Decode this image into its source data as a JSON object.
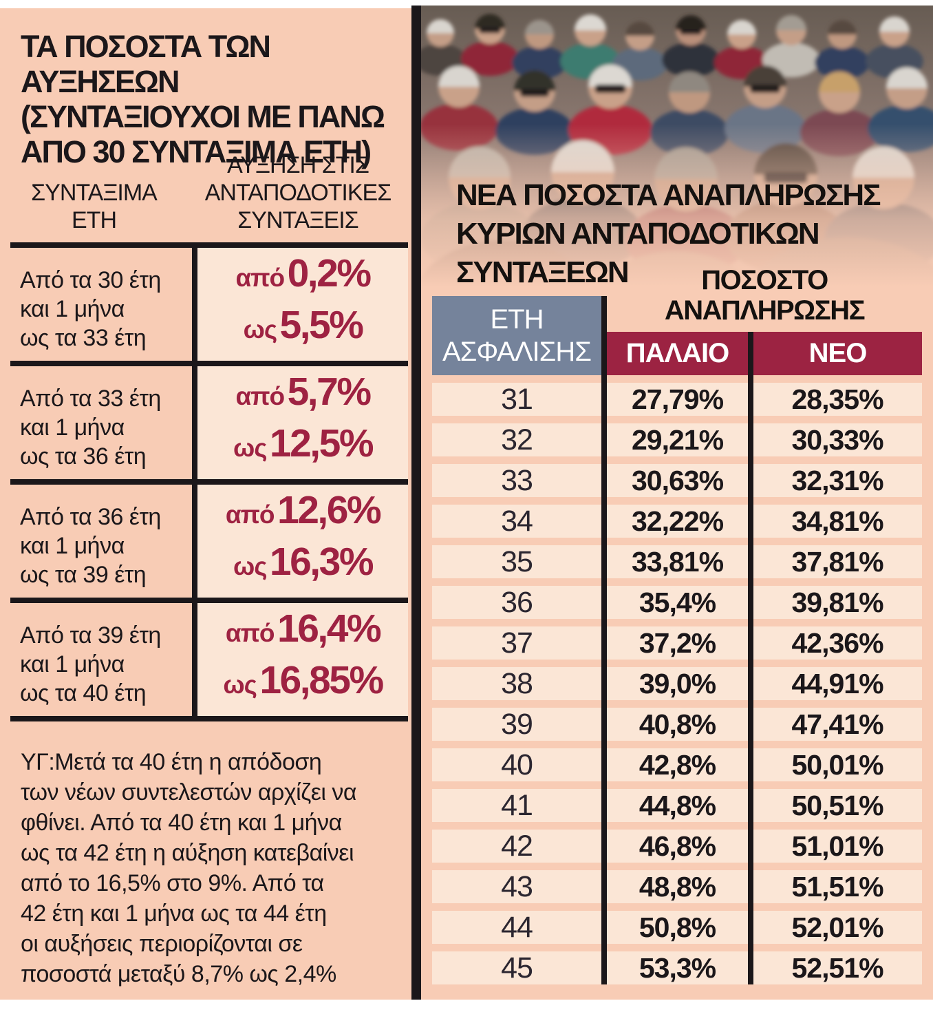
{
  "colors": {
    "background": "#ffffff",
    "salmon": "#f8ccb5",
    "cream": "#fbe6d6",
    "maroon": "#9c2342",
    "accent_red_text": "#9e2242",
    "slate": "#75839b",
    "ink": "#1b171a"
  },
  "left_panel": {
    "title": "ΤΑ ΠΟΣΟΣΤΑ ΤΩΝ ΑΥΞΗΣΕΩΝ\n(ΣΥΝΤΑΞΙΟΥΧΟΙ ΜΕ ΠΑΝΩ\nΑΠΟ 30 ΣΥΝΤΑΞΙΜΑ ΕΤΗ)",
    "footnote": "ΥΓ:Μετά τα 40 έτη η απόδοση\nτων νέων συντελεστών αρχίζει να\nφθίνει. Από τα 40 έτη και 1 μήνα\nως τα 42 έτη η αύξηση κατεβαίνει\nαπό το 16,5% στο 9%. Από τα\n42 έτη και 1 μήνα ως τα 44 έτη\nοι αυξήσεις περιορίζονται σε\nποσοστά μεταξύ 8,7% ως 2,4%"
  },
  "left_table": {
    "col1_header": "ΣΥΝΤΑΞΙΜΑ\nΕΤΗ",
    "col2_header": "ΑΥΞΗΣΗ ΣΤΙΣ\nΑΝΤΑΠΟΔΟΤΙΚΕΣ\nΣΥΝΤΑΞΕΙΣ",
    "prefix_from": "από",
    "prefix_to": "ως",
    "rows": [
      {
        "years": "Από τα 30 έτη\nκαι 1 μήνα\nως τα 33 έτη",
        "from": "0,2%",
        "to": "5,5%"
      },
      {
        "years": "Από τα 33 έτη\nκαι 1 μήνα\nως τα 36 έτη",
        "from": "5,7%",
        "to": "12,5%"
      },
      {
        "years": "Από τα 36 έτη\nκαι 1 μήνα\nως τα 39 έτη",
        "from": "12,6%",
        "to": "16,3%"
      },
      {
        "years": "Από τα 39 έτη\nκαι 1 μήνα\nως τα 40 έτη",
        "from": "16,4%",
        "to": "16,85%"
      }
    ]
  },
  "right_panel": {
    "photo_alt": "Πλήθος συνταξιούχων",
    "title": "ΝΕΑ ΠΟΣΟΣΤΑ ΑΝΑΠΛΗΡΩΣΗΣ\nΚΥΡΙΩΝ  ΑΝΤΑΠΟΔΟΤΙΚΩΝ\nΣΥΝΤΑΞΕΩΝ",
    "group_header": "ΠΟΣΟΣΤΟ\nΑΝΑΠΛΗΡΩΣΗΣ"
  },
  "right_table": {
    "col_years_header": "ΕΤΗ\nΑΣΦΑΛΙΣΗΣ",
    "col_old_header": "ΠΑΛΑΙΟ",
    "col_new_header": "ΝΕΟ",
    "rows": [
      {
        "years": "31",
        "old": "27,79%",
        "new": "28,35%"
      },
      {
        "years": "32",
        "old": "29,21%",
        "new": "30,33%"
      },
      {
        "years": "33",
        "old": "30,63%",
        "new": "32,31%"
      },
      {
        "years": "34",
        "old": "32,22%",
        "new": "34,81%"
      },
      {
        "years": "35",
        "old": "33,81%",
        "new": "37,81%"
      },
      {
        "years": "36",
        "old": "35,4%",
        "new": "39,81%"
      },
      {
        "years": "37",
        "old": "37,2%",
        "new": "42,36%"
      },
      {
        "years": "38",
        "old": "39,0%",
        "new": "44,91%"
      },
      {
        "years": "39",
        "old": "40,8%",
        "new": "47,41%"
      },
      {
        "years": "40",
        "old": "42,8%",
        "new": "50,01%"
      },
      {
        "years": "41",
        "old": "44,8%",
        "new": "50,51%"
      },
      {
        "years": "42",
        "old": "46,8%",
        "new": "51,01%"
      },
      {
        "years": "43",
        "old": "48,8%",
        "new": "51,51%"
      },
      {
        "years": "44",
        "old": "50,8%",
        "new": "52,01%"
      },
      {
        "years": "45",
        "old": "53,3%",
        "new": "52,51%"
      }
    ]
  }
}
